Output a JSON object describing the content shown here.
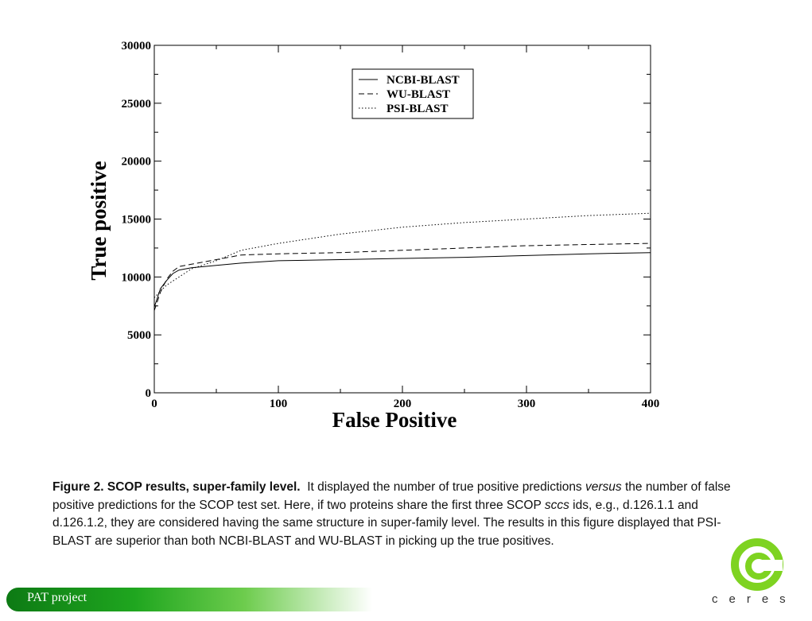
{
  "chart_data": {
    "type": "line",
    "xlabel": "False Positive",
    "ylabel": "True positive",
    "xlim": [
      0,
      400
    ],
    "ylim": [
      0,
      30000
    ],
    "x_ticks": [
      0,
      100,
      200,
      300,
      400
    ],
    "x_tick_labels": [
      "0",
      "100",
      "200",
      "300",
      "400"
    ],
    "y_ticks": [
      0,
      5000,
      10000,
      15000,
      20000,
      25000,
      30000
    ],
    "y_tick_labels": [
      "0",
      "5000",
      "10000",
      "15000",
      "20000",
      "25000",
      "30000"
    ],
    "legend_position": "top-center",
    "series": [
      {
        "name": "NCBI-BLAST",
        "style": "solid",
        "points": [
          [
            0,
            7400
          ],
          [
            5,
            9000
          ],
          [
            10,
            9700
          ],
          [
            15,
            10300
          ],
          [
            20,
            10600
          ],
          [
            30,
            10800
          ],
          [
            50,
            11000
          ],
          [
            70,
            11200
          ],
          [
            100,
            11400
          ],
          [
            150,
            11500
          ],
          [
            200,
            11600
          ],
          [
            250,
            11700
          ],
          [
            300,
            11850
          ],
          [
            350,
            12000
          ],
          [
            400,
            12100
          ]
        ]
      },
      {
        "name": "WU-BLAST",
        "style": "dashed",
        "points": [
          [
            0,
            7100
          ],
          [
            5,
            8700
          ],
          [
            10,
            9800
          ],
          [
            15,
            10500
          ],
          [
            20,
            10900
          ],
          [
            30,
            11100
          ],
          [
            50,
            11500
          ],
          [
            70,
            11900
          ],
          [
            100,
            12000
          ],
          [
            150,
            12100
          ],
          [
            200,
            12300
          ],
          [
            250,
            12500
          ],
          [
            300,
            12700
          ],
          [
            350,
            12800
          ],
          [
            400,
            12900
          ]
        ]
      },
      {
        "name": "PSI-BLAST",
        "style": "dotted",
        "points": [
          [
            0,
            8200
          ],
          [
            5,
            8800
          ],
          [
            10,
            9300
          ],
          [
            20,
            10000
          ],
          [
            30,
            10700
          ],
          [
            50,
            11400
          ],
          [
            70,
            12300
          ],
          [
            100,
            12900
          ],
          [
            150,
            13700
          ],
          [
            200,
            14300
          ],
          [
            250,
            14700
          ],
          [
            300,
            15000
          ],
          [
            350,
            15300
          ],
          [
            400,
            15500
          ]
        ]
      }
    ]
  },
  "caption": {
    "figure_label": "Figure 2. SCOP results, super-family level.",
    "text_1": "It displayed the number of true positive predictions ",
    "italic_1": "versus",
    "text_2": " the number of false positive predictions for the SCOP test set. Here, if two proteins share the first three SCOP ",
    "italic_2": "sccs",
    "text_3": " ids, e.g., d.126.1.1 and d.126.1.2, they are considered having the same structure in super-family level. The results in this figure displayed that PSI-BLAST are superior than both NCBI-BLAST and WU-BLAST in picking up the true positives."
  },
  "footer": {
    "title": "PAT project",
    "brand": "ceres",
    "bar_color": "#1fa61f",
    "logo_color": "#7ed321"
  }
}
